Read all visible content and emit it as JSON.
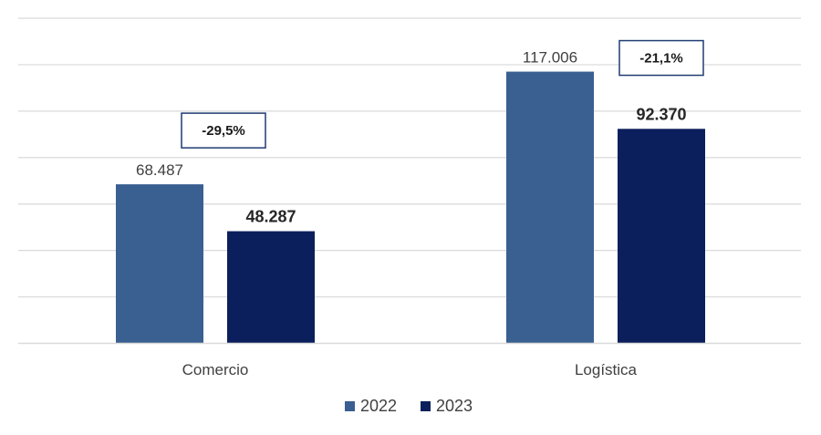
{
  "chart_data": {
    "type": "bar",
    "categories": [
      "Comercio",
      "Logística"
    ],
    "series": [
      {
        "name": "2022",
        "values": [
          68487,
          117006
        ],
        "labels": [
          "68.487",
          "117.006"
        ],
        "color": "#3a5f91"
      },
      {
        "name": "2023",
        "values": [
          48287,
          92370
        ],
        "labels": [
          "48.287",
          "92.370"
        ],
        "color": "#0b1f5c"
      }
    ],
    "annotations": [
      "-29,5%",
      "-21,1%"
    ],
    "ylim": [
      0,
      140000
    ],
    "grid": true,
    "legend_position": "bottom",
    "title": "",
    "xlabel": "",
    "ylabel": ""
  }
}
